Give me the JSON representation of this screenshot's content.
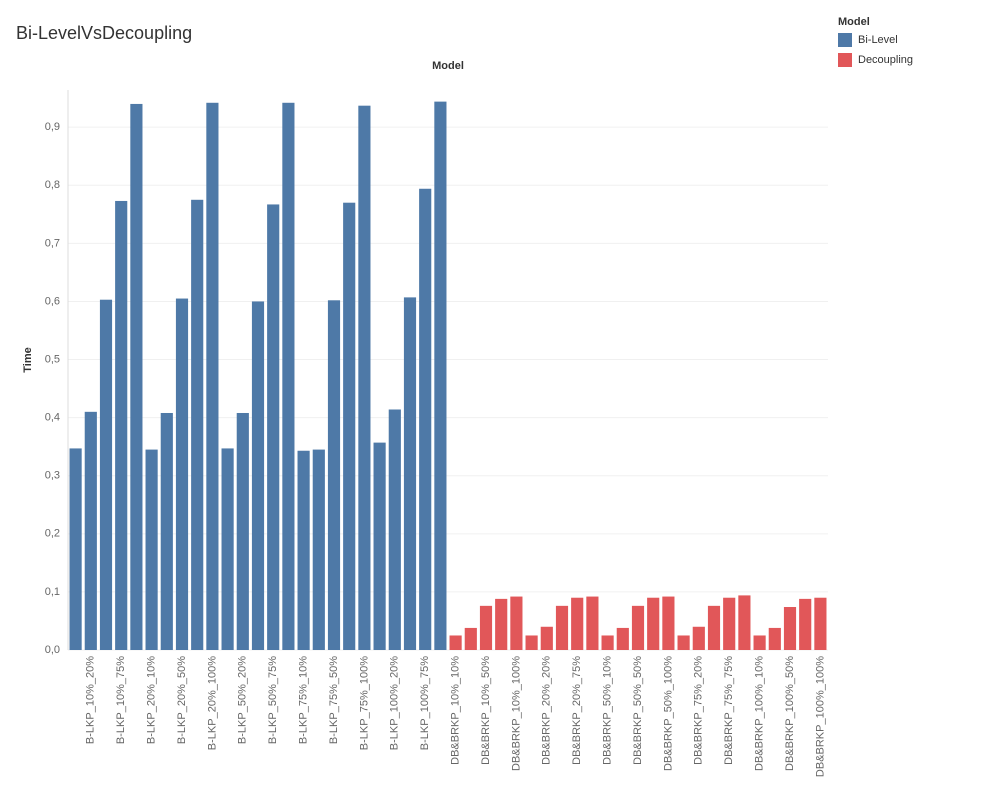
{
  "chart_data": {
    "type": "bar",
    "title": "Bi-LevelVsDecoupling",
    "column_header": "Model",
    "y_label": "Time",
    "legend_title": "Model",
    "categories": [
      null,
      "B-LKP_10%_20%",
      null,
      "B-LKP_10%_75%",
      null,
      "B-LKP_20%_10%",
      null,
      "B-LKP_20%_50%",
      null,
      "B-LKP_20%_100%",
      null,
      "B-LKP_50%_20%",
      null,
      "B-LKP_50%_75%",
      null,
      "B-LKP_75%_10%",
      null,
      "B-LKP_75%_50%",
      null,
      "B-LKP_75%_100%",
      null,
      "B-LKP_100%_20%",
      null,
      "B-LKP_100%_75%",
      null,
      "DB&BRKP_10%_10%",
      null,
      "DB&BRKP_10%_50%",
      null,
      "DB&BRKP_10%_100%",
      null,
      "DB&BRKP_20%_20%",
      null,
      "DB&BRKP_20%_75%",
      null,
      "DB&BRKP_50%_10%",
      null,
      "DB&BRKP_50%_50%",
      null,
      "DB&BRKP_50%_100%",
      null,
      "DB&BRKP_75%_20%",
      null,
      "DB&BRKP_75%_75%",
      null,
      "DB&BRKP_100%_10%",
      null,
      "DB&BRKP_100%_50%",
      null,
      "DB&BRKP_100%_100%"
    ],
    "series": [
      {
        "name": "Bi-Level",
        "color": "#4e79a7",
        "values": [
          0.347,
          0.41,
          0.603,
          0.773,
          0.94,
          0.345,
          0.408,
          0.605,
          0.775,
          0.942,
          0.347,
          0.408,
          0.6,
          0.767,
          0.942,
          0.343,
          0.345,
          0.602,
          0.77,
          0.937,
          0.357,
          0.414,
          0.607,
          0.794,
          0.944,
          null,
          null,
          null,
          null,
          null,
          null,
          null,
          null,
          null,
          null,
          null,
          null,
          null,
          null,
          null,
          null,
          null,
          null,
          null,
          null,
          null,
          null,
          null,
          null,
          null
        ]
      },
      {
        "name": "Decoupling",
        "color": "#e15759",
        "values": [
          null,
          null,
          null,
          null,
          null,
          null,
          null,
          null,
          null,
          null,
          null,
          null,
          null,
          null,
          null,
          null,
          null,
          null,
          null,
          null,
          null,
          null,
          null,
          null,
          null,
          0.025,
          0.038,
          0.076,
          0.088,
          0.092,
          0.025,
          0.04,
          0.076,
          0.09,
          0.092,
          0.025,
          0.038,
          0.076,
          0.09,
          0.092,
          0.025,
          0.04,
          0.076,
          0.09,
          0.094,
          0.025,
          0.038,
          0.074,
          0.088,
          0.09
        ]
      }
    ],
    "ylim": [
      0,
      0.964
    ],
    "yticks": [
      {
        "value": 0,
        "label": "0,0"
      },
      {
        "value": 0.1,
        "label": "0,1"
      },
      {
        "value": 0.2,
        "label": "0,2"
      },
      {
        "value": 0.3,
        "label": "0,3"
      },
      {
        "value": 0.4,
        "label": "0,4"
      },
      {
        "value": 0.5,
        "label": "0,5"
      },
      {
        "value": 0.6,
        "label": "0,6"
      },
      {
        "value": 0.7,
        "label": "0,7"
      },
      {
        "value": 0.8,
        "label": "0,8"
      },
      {
        "value": 0.9,
        "label": "0,9"
      }
    ],
    "grid": true
  }
}
